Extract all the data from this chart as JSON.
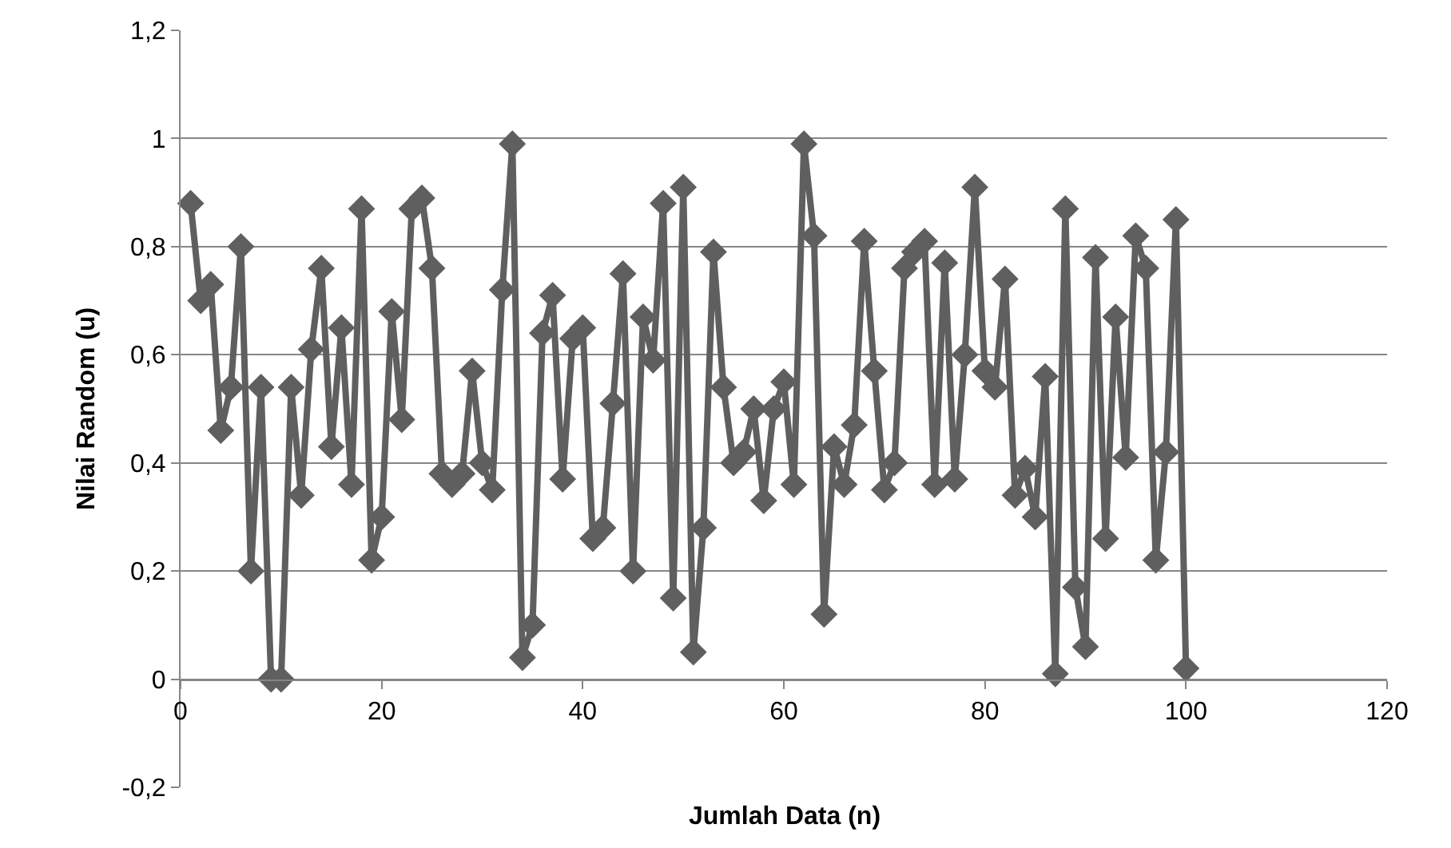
{
  "chart_data": {
    "type": "line",
    "xlabel": "Jumlah Data (n)",
    "ylabel": "Nilai Random (u)",
    "x": [
      1,
      2,
      3,
      4,
      5,
      6,
      7,
      8,
      9,
      10,
      11,
      12,
      13,
      14,
      15,
      16,
      17,
      18,
      19,
      20,
      21,
      22,
      23,
      24,
      25,
      26,
      27,
      28,
      29,
      30,
      31,
      32,
      33,
      34,
      35,
      36,
      37,
      38,
      39,
      40,
      41,
      42,
      43,
      44,
      45,
      46,
      47,
      48,
      49,
      50,
      51,
      52,
      53,
      54,
      55,
      56,
      57,
      58,
      59,
      60,
      61,
      62,
      63,
      64,
      65,
      66,
      67,
      68,
      69,
      70,
      71,
      72,
      73,
      74,
      75,
      76,
      77,
      78,
      79,
      80,
      81,
      82,
      83,
      84,
      85,
      86,
      87,
      88,
      89,
      90,
      91,
      92,
      93,
      94,
      95,
      96,
      97,
      98,
      99,
      100
    ],
    "series": [
      {
        "color": "#5f5f5f",
        "values": [
          0.88,
          0.7,
          0.73,
          0.46,
          0.54,
          0.8,
          0.2,
          0.54,
          0.0,
          0.0,
          0.54,
          0.34,
          0.61,
          0.76,
          0.43,
          0.65,
          0.36,
          0.87,
          0.22,
          0.3,
          0.68,
          0.48,
          0.87,
          0.89,
          0.76,
          0.38,
          0.36,
          0.38,
          0.57,
          0.4,
          0.35,
          0.72,
          0.99,
          0.04,
          0.1,
          0.64,
          0.71,
          0.37,
          0.63,
          0.65,
          0.26,
          0.28,
          0.51,
          0.75,
          0.2,
          0.67,
          0.59,
          0.88,
          0.15,
          0.91,
          0.05,
          0.28,
          0.79,
          0.54,
          0.4,
          0.42,
          0.5,
          0.33,
          0.5,
          0.55,
          0.36,
          0.99,
          0.82,
          0.12,
          0.43,
          0.36,
          0.47,
          0.81,
          0.57,
          0.35,
          0.4,
          0.76,
          0.79,
          0.81,
          0.36,
          0.77,
          0.37,
          0.6,
          0.91,
          0.57,
          0.54,
          0.74,
          0.34,
          0.39,
          0.3,
          0.56,
          0.01,
          0.87,
          0.17,
          0.06,
          0.78,
          0.26,
          0.67,
          0.41,
          0.82,
          0.76,
          0.22,
          0.42,
          0.85,
          0.02
        ]
      }
    ],
    "xlim": [
      0,
      120
    ],
    "xticks": [
      0,
      20,
      40,
      60,
      80,
      100,
      120
    ],
    "ylim": [
      -0.2,
      1.2
    ],
    "yticks": [
      {
        "value": -0.2,
        "label": "-0,2"
      },
      0,
      {
        "value": 0.2,
        "label": "0,2"
      },
      {
        "value": 0.4,
        "label": "0,4"
      },
      {
        "value": 0.6,
        "label": "0,6"
      },
      {
        "value": 0.8,
        "label": "0,8"
      },
      1,
      {
        "value": 1.2,
        "label": "1,2"
      }
    ],
    "grid": "y",
    "marker": "diamond",
    "line_style": "solid"
  }
}
